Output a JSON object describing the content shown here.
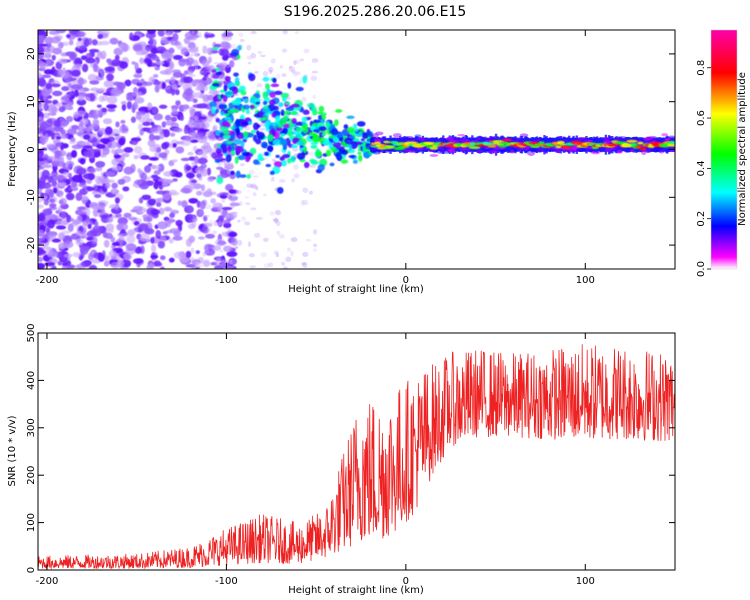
{
  "title": "S196.2025.286.20.06.E15",
  "chart_data": [
    {
      "type": "heatmap",
      "xlabel": "Height of straight line (km)",
      "ylabel": "Frequency (Hz)",
      "xlim": [
        -205,
        150
      ],
      "ylim": [
        -25,
        25
      ],
      "xticks": [
        -200,
        -100,
        0,
        100
      ],
      "yticks": [
        -20,
        -10,
        0,
        10,
        20
      ],
      "xtick_labels": [
        "-200",
        "-100",
        "0",
        "100"
      ],
      "ytick_labels": [
        "-20",
        "-10",
        "0",
        "10",
        "20"
      ],
      "colorbar": {
        "label": "Normalized spectral amplitude",
        "range": [
          0,
          0.95
        ],
        "ticks": [
          0,
          0.2,
          0.4,
          0.6,
          0.8
        ],
        "tick_labels": [
          "0.0",
          "0.2",
          "0.4",
          "0.6",
          "0.8"
        ],
        "colormap": [
          "#ffffff",
          "#ff00ff",
          "#0000ff",
          "#00ffff",
          "#00ff00",
          "#ffff00",
          "#ff0000"
        ]
      },
      "description_regions": [
        {
          "x_range": [
            -205,
            -105
          ],
          "freq_range": [
            -25,
            25
          ],
          "amplitude": "low-moderate (purple blobs, broadband noise)"
        },
        {
          "x_range": [
            -105,
            -20
          ],
          "freq_center": [
            7,
            0
          ],
          "amplitude": "rising, blue-cyan clumps converging toward 0 Hz"
        },
        {
          "x_range": [
            -20,
            150
          ],
          "freq_center": 1,
          "amplitude": "strong narrow band near 1 Hz, peaks ~0.9"
        }
      ]
    },
    {
      "type": "line",
      "xlabel": "Height of straight line (km)",
      "ylabel": "SNR (10 * v/v)",
      "xlim": [
        -205,
        150
      ],
      "ylim": [
        0,
        500
      ],
      "xticks": [
        -200,
        -100,
        0,
        100
      ],
      "yticks": [
        0,
        100,
        200,
        300,
        400,
        500
      ],
      "xtick_labels": [
        "-200",
        "-100",
        "0",
        "100"
      ],
      "ytick_labels": [
        "0",
        "100",
        "200",
        "300",
        "400",
        "500"
      ],
      "series": [
        {
          "name": "SNR",
          "color": "#ee2222",
          "envelope": {
            "x": [
              -205,
              -150,
              -120,
              -100,
              -80,
              -60,
              -45,
              -35,
              -25,
              -15,
              -5,
              5,
              15,
              25,
              40,
              60,
              80,
              100,
              120,
              150
            ],
            "low": [
              3,
              3,
              5,
              10,
              15,
              12,
              25,
              40,
              60,
              60,
              80,
              120,
              200,
              260,
              280,
              280,
              275,
              275,
              275,
              270
            ],
            "high": [
              30,
              35,
              50,
              90,
              120,
              100,
              130,
              250,
              380,
              370,
              390,
              420,
              440,
              460,
              470,
              460,
              470,
              480,
              480,
              460
            ]
          }
        }
      ]
    }
  ]
}
